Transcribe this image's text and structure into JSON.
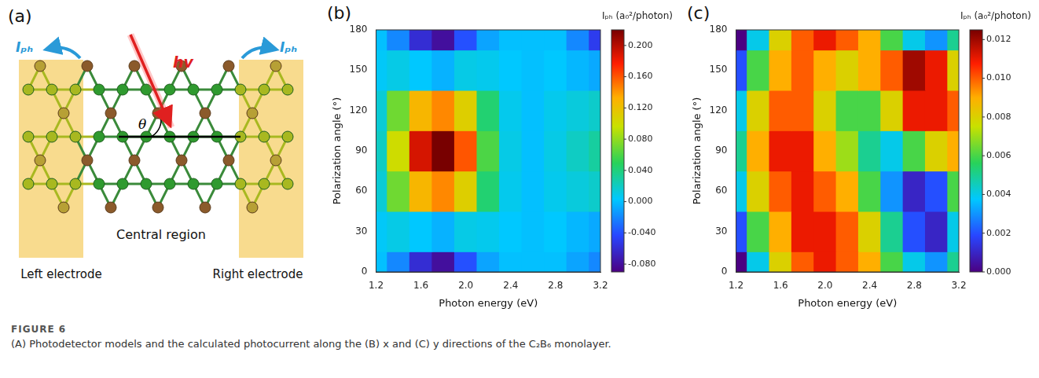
{
  "figure_label": "FIGURE 6",
  "caption": "(A) Photodetector models and the calculated photocurrent along the (B) x and (C) y directions of the C₂B₆ monolayer.",
  "diagram": {
    "panel": "(a)",
    "current_label": "Iₚₕ",
    "photon_label": "hv",
    "angle_label": "θ",
    "central": "Central region",
    "left": "Left electrode",
    "right": "Right electrode"
  },
  "chart_data": [
    {
      "type": "heatmap",
      "panel": "(b)",
      "x_label": "Photon energy (eV)",
      "y_label": "Polarization angle (°)",
      "x": [
        1.2,
        1.4,
        1.6,
        1.8,
        2.0,
        2.2,
        2.4,
        2.6,
        2.8,
        3.0,
        3.2
      ],
      "y": [
        0,
        30,
        60,
        90,
        120,
        150,
        180
      ],
      "values": [
        [
          0,
          -0.02,
          -0.06,
          -0.08,
          -0.04,
          -0.01,
          0,
          0,
          0,
          -0.01,
          -0.02
        ],
        [
          0.005,
          0.01,
          0.003,
          -0.005,
          0.01,
          0.008,
          0.003,
          0,
          0.003,
          -0.003,
          -0.008
        ],
        [
          0.015,
          0.07,
          0.128,
          0.145,
          0.11,
          0.043,
          0.008,
          0,
          0.008,
          0.013,
          0.018
        ],
        [
          0.02,
          0.1,
          0.19,
          0.22,
          0.16,
          0.06,
          0.01,
          0,
          0.01,
          0.02,
          0.03
        ],
        [
          0.015,
          0.07,
          0.128,
          0.145,
          0.11,
          0.043,
          0.008,
          0,
          0.008,
          0.013,
          0.018
        ],
        [
          0.005,
          0.01,
          0.003,
          -0.005,
          0.01,
          0.008,
          0.003,
          0,
          0.003,
          -0.003,
          -0.008
        ],
        [
          0,
          -0.02,
          -0.06,
          -0.08,
          -0.04,
          -0.01,
          0,
          0,
          0,
          -0.02,
          -0.05
        ]
      ],
      "xlim": [
        1.2,
        3.2
      ],
      "ylim": [
        0,
        180
      ],
      "xticks": [
        1.2,
        1.6,
        {
          "value": 2,
          "label": "2.0"
        },
        2.4,
        2.8,
        3.2
      ],
      "yticks": [
        0,
        30,
        60,
        90,
        120,
        150,
        180
      ],
      "grid": false,
      "colorbar": {
        "title": "Iₚₕ (a₀²/photon)",
        "range": [
          -0.09,
          0.22
        ],
        "ticks": [
          {
            "value": -0.08,
            "label": "-0.080"
          },
          {
            "value": -0.04,
            "label": "-0.040"
          },
          {
            "value": 0,
            "label": "0.000"
          },
          {
            "value": 0.04,
            "label": "0.040"
          },
          {
            "value": 0.08,
            "label": "0.080"
          },
          {
            "value": 0.12,
            "label": "0.120"
          },
          {
            "value": 0.16,
            "label": "0.160"
          },
          {
            "value": 0.2,
            "label": "0.200"
          }
        ]
      }
    },
    {
      "type": "heatmap",
      "panel": "(c)",
      "x_label": "Photon energy (eV)",
      "y_label": "Polarization angle (°)",
      "x": [
        1.2,
        1.4,
        1.6,
        1.8,
        2.0,
        2.2,
        2.4,
        2.6,
        2.8,
        3.0,
        3.2
      ],
      "y": [
        0,
        30,
        60,
        90,
        120,
        150,
        180
      ],
      "values": [
        [
          0.0,
          0.004,
          0.008,
          0.01,
          0.011,
          0.01,
          0.009,
          0.006,
          0.004,
          0.003,
          0.005
        ],
        [
          0.002,
          0.006,
          0.009,
          0.011,
          0.011,
          0.01,
          0.008,
          0.005,
          0.002,
          0.001,
          0.004
        ],
        [
          0.004,
          0.008,
          0.01,
          0.011,
          0.01,
          0.009,
          0.006,
          0.003,
          0.001,
          0.002,
          0.006
        ],
        [
          0.005,
          0.009,
          0.011,
          0.011,
          0.009,
          0.007,
          0.005,
          0.004,
          0.006,
          0.008,
          0.009
        ],
        [
          0.004,
          0.008,
          0.01,
          0.01,
          0.008,
          0.006,
          0.006,
          0.008,
          0.011,
          0.011,
          0.01
        ],
        [
          0.002,
          0.006,
          0.009,
          0.01,
          0.009,
          0.008,
          0.009,
          0.01,
          0.012,
          0.011,
          0.008
        ],
        [
          0.0,
          0.004,
          0.008,
          0.01,
          0.011,
          0.01,
          0.009,
          0.006,
          0.004,
          0.003,
          0.005
        ]
      ],
      "xlim": [
        1.2,
        3.2
      ],
      "ylim": [
        0,
        180
      ],
      "xticks": [
        1.2,
        1.6,
        {
          "value": 2,
          "label": "2.0"
        },
        2.4,
        2.8,
        3.2
      ],
      "yticks": [
        0,
        30,
        60,
        90,
        120,
        150,
        180
      ],
      "grid": false,
      "colorbar": {
        "title": "Iₚₕ (a₀²/photon)",
        "range": [
          0,
          0.0125
        ],
        "ticks": [
          {
            "value": 0,
            "label": "0.000"
          },
          {
            "value": 0.002,
            "label": "0.002"
          },
          {
            "value": 0.004,
            "label": "0.004"
          },
          {
            "value": 0.006,
            "label": "0.006"
          },
          {
            "value": 0.008,
            "label": "0.008"
          },
          {
            "value": 0.01,
            "label": "0.010"
          },
          {
            "value": 0.012,
            "label": "0.012"
          }
        ]
      }
    }
  ]
}
